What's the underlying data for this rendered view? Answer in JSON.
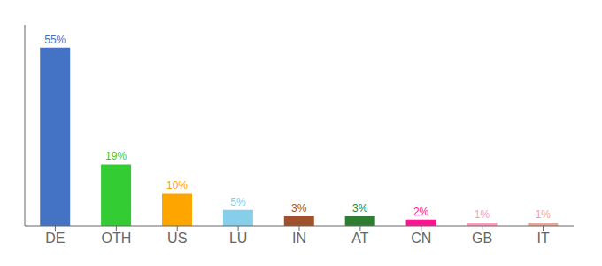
{
  "chart_data": {
    "type": "bar",
    "categories": [
      "DE",
      "OTH",
      "US",
      "LU",
      "IN",
      "AT",
      "CN",
      "GB",
      "IT"
    ],
    "values": [
      55,
      19,
      10,
      5,
      3,
      3,
      2,
      1,
      1
    ],
    "value_labels": [
      "55%",
      "19%",
      "10%",
      "5%",
      "3%",
      "3%",
      "2%",
      "1%",
      "1%"
    ],
    "colors": [
      "#4472C4",
      "#33CC33",
      "#FFA500",
      "#87CEEB",
      "#A0522D",
      "#2E7D32",
      "#FF1493",
      "#FF99BB",
      "#E8A898"
    ],
    "ylim": [
      0,
      62
    ],
    "grid": false,
    "data_labels": true,
    "tick_labels": "x"
  }
}
